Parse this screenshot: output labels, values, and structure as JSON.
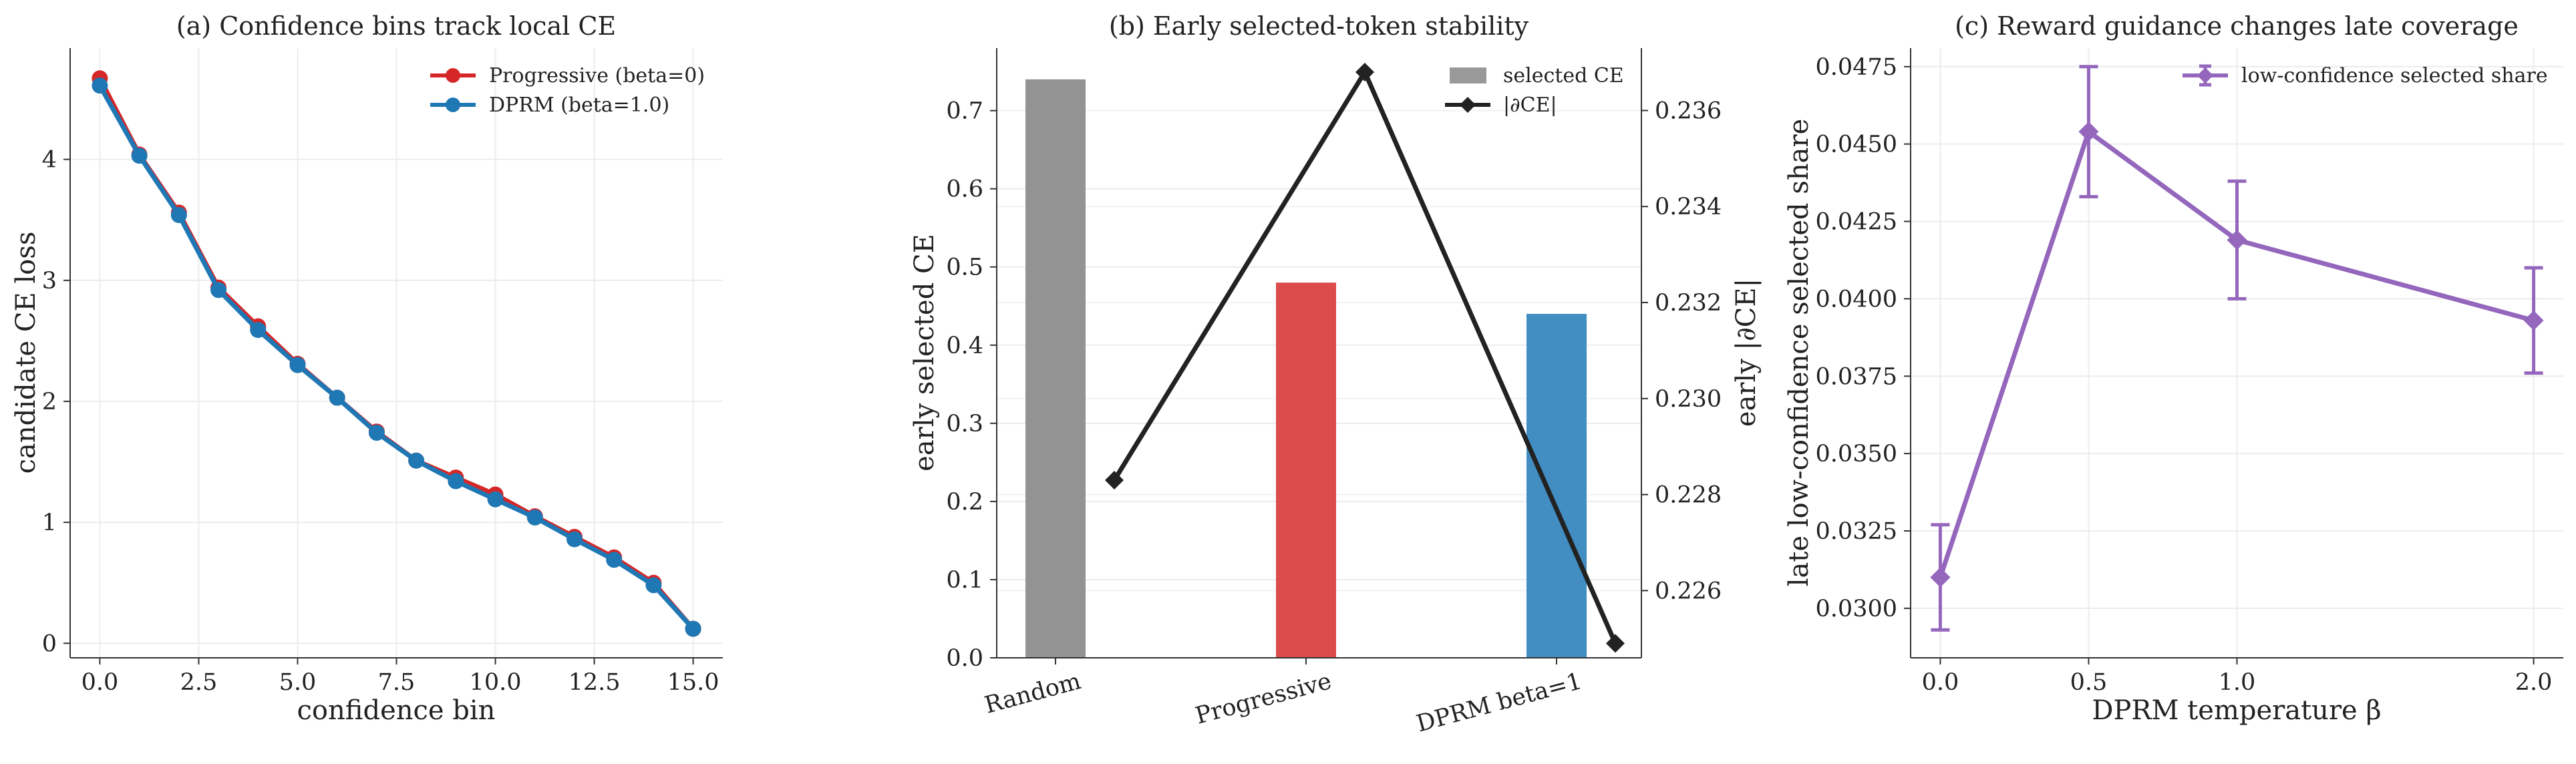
{
  "chart_data": [
    {
      "type": "line",
      "title": "(a) Confidence bins track local CE",
      "xlabel": "confidence bin",
      "ylabel": "candidate CE loss",
      "xlim": [
        -0.75,
        15.75
      ],
      "ylim": [
        -0.12,
        4.92
      ],
      "xticks": [
        "0.0",
        "2.5",
        "5.0",
        "7.5",
        "10.0",
        "12.5",
        "15.0"
      ],
      "yticks": [
        "0",
        "1",
        "2",
        "3",
        "4"
      ],
      "grid": true,
      "legend_position": "top-right",
      "x": [
        0,
        1,
        2,
        3,
        4,
        5,
        6,
        7,
        8,
        9,
        10,
        11,
        12,
        13,
        14,
        15
      ],
      "series": [
        {
          "name": "Progressive (beta=0)",
          "color": "#d62728",
          "values": [
            4.67,
            4.04,
            3.56,
            2.94,
            2.62,
            2.31,
            2.03,
            1.75,
            1.51,
            1.37,
            1.23,
            1.05,
            0.88,
            0.71,
            0.5,
            0.12
          ]
        },
        {
          "name": "DPRM (beta=1.0)",
          "color": "#1f77b4",
          "values": [
            4.61,
            4.03,
            3.54,
            2.92,
            2.59,
            2.3,
            2.03,
            1.74,
            1.51,
            1.34,
            1.19,
            1.04,
            0.86,
            0.69,
            0.48,
            0.12
          ]
        }
      ]
    },
    {
      "type": "bar",
      "title": "(b) Early selected-token stability",
      "xlabel": "",
      "ylabel": "early selected CE",
      "y2label": "early |∂CE|",
      "categories": [
        "Random",
        "Progressive",
        "DPRM beta=1"
      ],
      "ylim": [
        0,
        0.78
      ],
      "y2lim": [
        0.2246,
        0.2373
      ],
      "yticks": [
        "0.0",
        "0.1",
        "0.2",
        "0.3",
        "0.4",
        "0.5",
        "0.6",
        "0.7"
      ],
      "y2ticks": [
        "0.226",
        "0.228",
        "0.230",
        "0.232",
        "0.234",
        "0.236"
      ],
      "grid": true,
      "legend_position": "top-right",
      "bars": {
        "name": "selected CE",
        "values": [
          0.74,
          0.48,
          0.44
        ],
        "colors": [
          "#939393",
          "#dc4c4c",
          "#428ec2"
        ],
        "legend_color": "#999999"
      },
      "line": {
        "name": "|∂CE|",
        "values": [
          0.2283,
          0.2368,
          0.2249
        ],
        "color": "#222222"
      }
    },
    {
      "type": "line",
      "title": "(c) Reward guidance changes late coverage",
      "xlabel": "DPRM temperature β",
      "ylabel": "late low-confidence selected share",
      "xlim": [
        -0.1,
        2.1
      ],
      "ylim": [
        0.0284,
        0.0481
      ],
      "xticks": [
        "0.0",
        "0.5",
        "1.0",
        "2.0"
      ],
      "yticks": [
        "0.0300",
        "0.0325",
        "0.0350",
        "0.0375",
        "0.0400",
        "0.0425",
        "0.0450",
        "0.0475"
      ],
      "grid": true,
      "legend_position": "top-right",
      "series": [
        {
          "name": "low-confidence selected share",
          "color": "#9467bd",
          "x": [
            0.0,
            0.5,
            1.0,
            2.0
          ],
          "values": [
            0.031,
            0.0454,
            0.0419,
            0.0393
          ],
          "errors": [
            0.0017,
            0.0021,
            0.0019,
            0.0017
          ]
        }
      ]
    }
  ]
}
